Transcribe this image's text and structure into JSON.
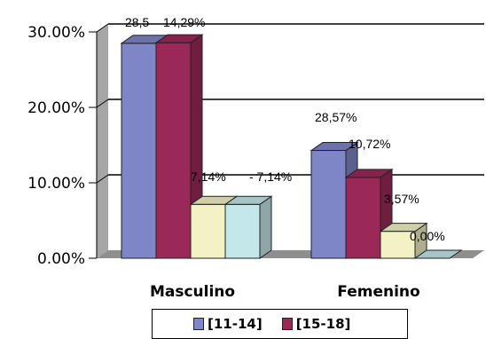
{
  "chart_data": {
    "type": "bar",
    "categories": [
      "Masculino",
      "Femenino"
    ],
    "series": [
      {
        "name": "[11-14]",
        "values": [
          28.5,
          14.29
        ],
        "color": "#7f86c8",
        "labels": [
          "28,5",
          "14,29%"
        ]
      },
      {
        "name": "[15-18]",
        "values": [
          28.57,
          10.72
        ],
        "color": "#9b2958",
        "labels": [
          "28,57%",
          "10,72%"
        ]
      },
      {
        "name": "",
        "values": [
          7.14,
          3.57
        ],
        "color": "#f2f2c4",
        "labels": [
          "7,14%",
          "3,57%"
        ]
      },
      {
        "name": "",
        "values": [
          7.14,
          0.0
        ],
        "color": "#c4e8ea",
        "labels": [
          "- 7,14%",
          "0,00%"
        ]
      }
    ],
    "yticks": [
      "0.00%",
      "10.00%",
      "20.00%",
      "30.00%"
    ],
    "ylim": [
      0,
      30
    ],
    "grid": true,
    "legend_position": "bottom",
    "three_d": true
  }
}
